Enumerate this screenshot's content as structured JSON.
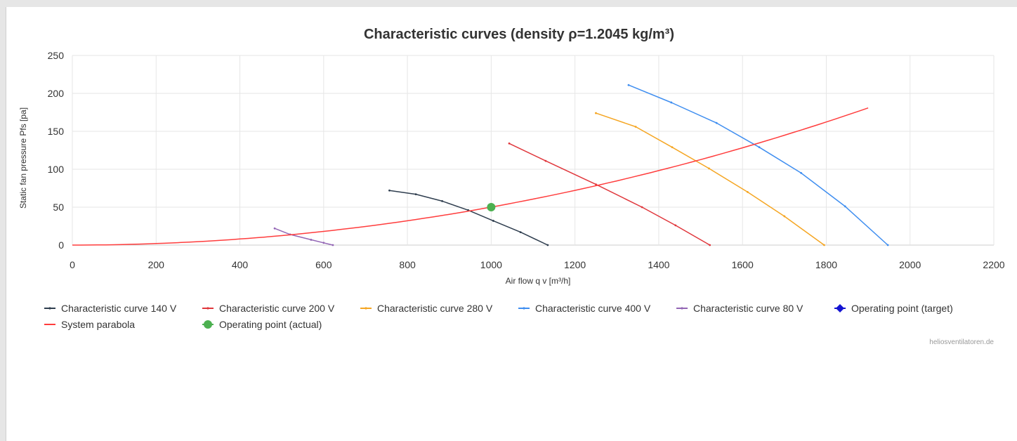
{
  "chart_data": {
    "type": "line",
    "title": "Characteristic curves (density ρ=1.2045 kg/m³)",
    "xlabel": "Air flow q v [m³/h]",
    "ylabel": "Static fan pressure Pfs [pa]",
    "xlim": [
      0,
      2200
    ],
    "ylim": [
      0,
      250
    ],
    "x_ticks": [
      0,
      200,
      400,
      600,
      800,
      1000,
      1200,
      1400,
      1600,
      1800,
      2000,
      2200
    ],
    "y_ticks": [
      0,
      50,
      100,
      150,
      200,
      250
    ],
    "grid": true,
    "legend_position": "bottom",
    "series": [
      {
        "name": "Characteristic curve 140 V",
        "color": "#2f3e4f",
        "marker": "dot",
        "points": [
          [
            757,
            72
          ],
          [
            820,
            67
          ],
          [
            883,
            58
          ],
          [
            945,
            46
          ],
          [
            1005,
            32
          ],
          [
            1070,
            17
          ],
          [
            1135,
            0
          ]
        ]
      },
      {
        "name": "Characteristic curve 200 V",
        "color": "#e0373c",
        "marker": "dot",
        "points": [
          [
            1043,
            134
          ],
          [
            1130,
            111
          ],
          [
            1250,
            80
          ],
          [
            1360,
            50
          ],
          [
            1440,
            26
          ],
          [
            1522,
            0
          ]
        ]
      },
      {
        "name": "Characteristic curve 280 V",
        "color": "#f5a623",
        "marker": "dot",
        "points": [
          [
            1250,
            174
          ],
          [
            1345,
            156
          ],
          [
            1432,
            129
          ],
          [
            1520,
            101
          ],
          [
            1612,
            70
          ],
          [
            1700,
            38
          ],
          [
            1795,
            0
          ]
        ]
      },
      {
        "name": "Characteristic curve 400 V",
        "color": "#3f8ef0",
        "marker": "dot",
        "points": [
          [
            1328,
            211
          ],
          [
            1430,
            188
          ],
          [
            1538,
            161
          ],
          [
            1640,
            129
          ],
          [
            1740,
            95
          ],
          [
            1845,
            51
          ],
          [
            1947,
            0
          ]
        ]
      },
      {
        "name": "Characteristic curve 80 V",
        "color": "#9366b5",
        "marker": "dot",
        "points": [
          [
            483,
            22
          ],
          [
            520,
            14
          ],
          [
            570,
            7
          ],
          [
            600,
            3
          ],
          [
            622,
            0
          ]
        ]
      },
      {
        "name": "Operating point (target)",
        "color": "#1414d2",
        "marker": "diamond",
        "points": []
      },
      {
        "name": "System parabola",
        "color": "#ff3d3d",
        "marker": "none",
        "parabola_k": 5.01e-05,
        "x_range": [
          0,
          1900
        ]
      },
      {
        "name": "Operating point (actual)",
        "color": "#4cb050",
        "marker": "circle",
        "points": [
          [
            1000,
            50
          ]
        ]
      }
    ]
  },
  "credits": "heliosventilatoren.de"
}
